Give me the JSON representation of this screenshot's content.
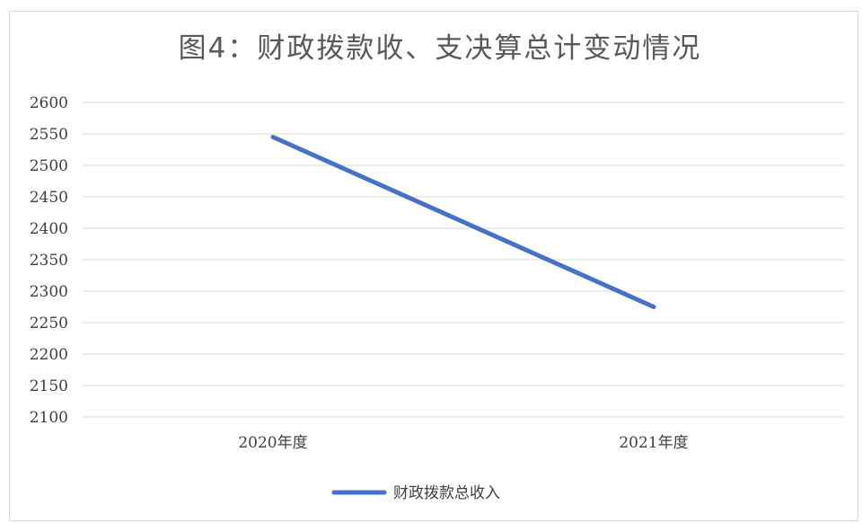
{
  "chart_data": {
    "type": "line",
    "title": "图4：财政拨款收、支决算总计变动情况",
    "categories": [
      "2020年度",
      "2021年度"
    ],
    "series": [
      {
        "name": "财政拨款总收入",
        "values": [
          2545,
          2275
        ],
        "color": "#4472c4"
      }
    ],
    "ylim": [
      2100,
      2600
    ],
    "ytick_step": 50,
    "yticks": [
      "2600",
      "2550",
      "2500",
      "2450",
      "2400",
      "2350",
      "2300",
      "2250",
      "2200",
      "2150",
      "2100"
    ],
    "grid": true,
    "gridline_color": "#d9d9d9",
    "legend_position": "bottom"
  }
}
